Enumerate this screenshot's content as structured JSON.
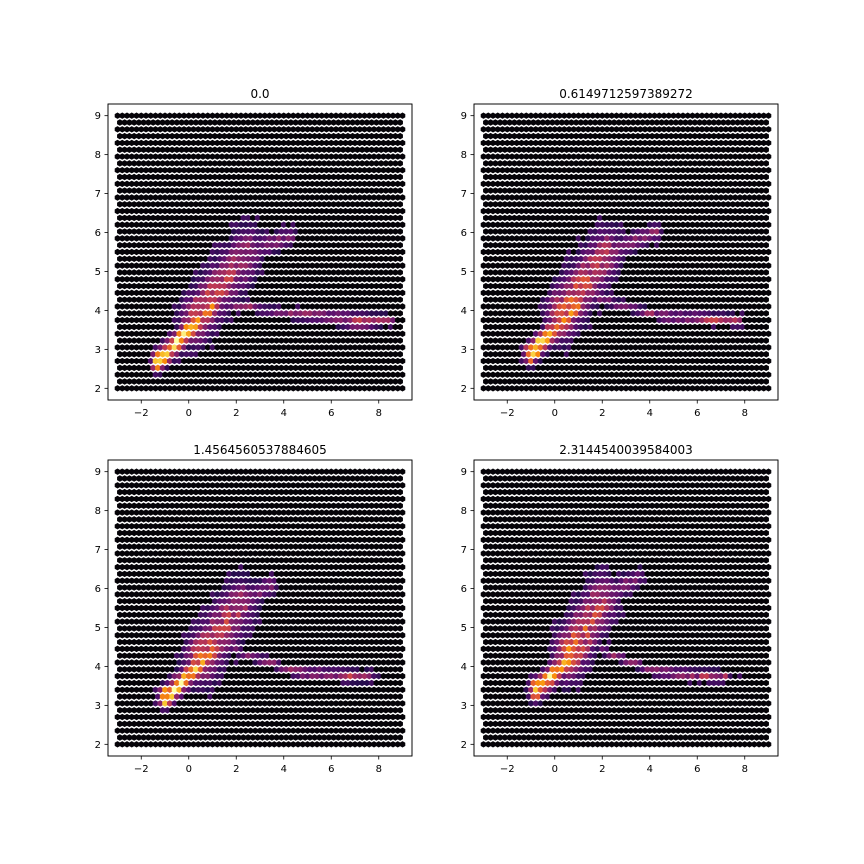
{
  "figure": {
    "background": "#ffffff",
    "colormap": "inferno",
    "hex_background": "#050308"
  },
  "chart_data": [
    {
      "type": "heatmap",
      "subtype": "hexbin",
      "title": "0.0",
      "xlim": [
        -3.4,
        9.4
      ],
      "ylim": [
        1.7,
        9.3
      ],
      "xticks": [
        -2,
        0,
        2,
        4,
        6,
        8
      ],
      "yticks": [
        2,
        3,
        4,
        5,
        6,
        7,
        8,
        9
      ],
      "grid_extent": {
        "x": [
          -3,
          9
        ],
        "y": [
          2,
          9
        ]
      },
      "distribution": {
        "diagonal": {
          "from": [
            -1.3,
            2.7
          ],
          "to": [
            1.2,
            4.2
          ],
          "peak_density": 1.0
        },
        "upper_lobe": {
          "from": [
            0.3,
            3.8
          ],
          "to": [
            2.5,
            5.5
          ],
          "tip": [
            4.3,
            5.9
          ],
          "peak_density": 0.5
        },
        "branch": {
          "from": [
            1.5,
            4.2
          ],
          "to": [
            4.3,
            3.9
          ]
        },
        "tail": {
          "from": [
            4.3,
            3.9
          ],
          "to": [
            8.5,
            3.75
          ],
          "hotspot": [
            7.2,
            3.7
          ],
          "peak_density": 0.6
        }
      }
    },
    {
      "type": "heatmap",
      "subtype": "hexbin",
      "title": "0.6149712597389272",
      "xlim": [
        -3.4,
        9.4
      ],
      "ylim": [
        1.7,
        9.3
      ],
      "xticks": [
        -2,
        0,
        2,
        4,
        6,
        8
      ],
      "yticks": [
        2,
        3,
        4,
        5,
        6,
        7,
        8,
        9
      ],
      "grid_extent": {
        "x": [
          -3,
          9
        ],
        "y": [
          2,
          9
        ]
      },
      "distribution": {
        "diagonal": {
          "from": [
            -1.0,
            2.9
          ],
          "to": [
            1.0,
            4.1
          ],
          "peak_density": 1.0
        },
        "upper_lobe": {
          "from": [
            0.3,
            3.9
          ],
          "to": [
            2.2,
            5.5
          ],
          "tip": [
            4.3,
            6.0
          ],
          "peak_density": 0.55
        },
        "branch": {
          "from": [
            1.8,
            4.3
          ],
          "to": [
            4.5,
            3.85
          ]
        },
        "tail": {
          "from": [
            4.5,
            3.85
          ],
          "to": [
            7.8,
            3.75
          ],
          "hotspot": [
            6.8,
            3.75
          ],
          "peak_density": 0.45
        }
      }
    },
    {
      "type": "heatmap",
      "subtype": "hexbin",
      "title": "1.4564560537884605",
      "xlim": [
        -3.4,
        9.4
      ],
      "ylim": [
        1.7,
        9.3
      ],
      "xticks": [
        -2,
        0,
        2,
        4,
        6,
        8
      ],
      "yticks": [
        2,
        3,
        4,
        5,
        6,
        7,
        8,
        9
      ],
      "grid_extent": {
        "x": [
          -3,
          9
        ],
        "y": [
          2,
          9
        ]
      },
      "distribution": {
        "diagonal": {
          "from": [
            -1.0,
            3.2
          ],
          "to": [
            1.0,
            4.3
          ],
          "peak_density": 1.0
        },
        "upper_lobe": {
          "from": [
            0.5,
            4.2
          ],
          "to": [
            2.2,
            5.6
          ],
          "tip": [
            3.5,
            6.1
          ],
          "peak_density": 0.55
        },
        "branch": {
          "from": [
            2.0,
            4.4
          ],
          "to": [
            4.5,
            3.85
          ]
        },
        "tail": {
          "from": [
            4.5,
            3.85
          ],
          "to": [
            7.5,
            3.75
          ],
          "hotspot": [
            7.0,
            3.75
          ],
          "peak_density": 0.45
        }
      }
    },
    {
      "type": "heatmap",
      "subtype": "hexbin",
      "title": "2.3144540039584003",
      "xlim": [
        -3.4,
        9.4
      ],
      "ylim": [
        1.7,
        9.3
      ],
      "xticks": [
        -2,
        0,
        2,
        4,
        6,
        8
      ],
      "yticks": [
        2,
        3,
        4,
        5,
        6,
        7,
        8,
        9
      ],
      "grid_extent": {
        "x": [
          -3,
          9
        ],
        "y": [
          2,
          9
        ]
      },
      "distribution": {
        "diagonal": {
          "from": [
            -0.8,
            3.4
          ],
          "to": [
            1.0,
            4.4
          ],
          "peak_density": 1.0
        },
        "upper_lobe": {
          "from": [
            0.6,
            4.3
          ],
          "to": [
            2.0,
            5.7
          ],
          "tip": [
            3.5,
            6.3
          ],
          "peak_density": 0.6
        },
        "branch": {
          "from": [
            2.0,
            4.4
          ],
          "to": [
            4.3,
            3.85
          ]
        },
        "tail": {
          "from": [
            4.3,
            3.85
          ],
          "to": [
            7.2,
            3.75
          ],
          "hotspot": [
            6.5,
            3.75
          ],
          "peak_density": 0.4
        }
      }
    }
  ]
}
